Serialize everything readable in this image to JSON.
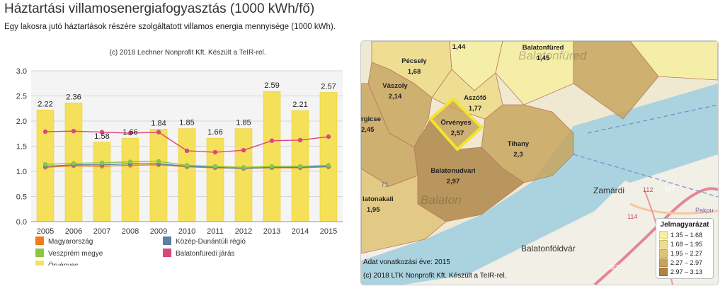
{
  "title": "Háztartási villamosenergiafogyasztás (1000 kWh/fő)",
  "subtitle": "Egy lakosra jutó háztartások részére szolgáltatott villamos energia mennyisége (1000 kWh).",
  "chart_credit": "(c) 2018 Lechner Nonprofit Kft. Készült a TeIR-rel.",
  "chart_data": {
    "type": "bar",
    "categories": [
      "2005",
      "2006",
      "2007",
      "2008",
      "2009",
      "2010",
      "2011",
      "2012",
      "2013",
      "2014",
      "2015"
    ],
    "ylim": [
      0,
      3.0
    ],
    "yticks": [
      "0.0",
      "0.5",
      "1.0",
      "1.5",
      "2.0",
      "2.5",
      "3.0"
    ],
    "bar_series": {
      "name": "Örvényes",
      "color": "#f5e05a",
      "values": [
        2.22,
        2.36,
        1.58,
        1.66,
        1.84,
        1.85,
        1.66,
        1.85,
        2.59,
        2.21,
        2.57
      ],
      "labels": [
        "2.22",
        "2.36",
        "1.58",
        "1.66",
        "1.84",
        "1.85",
        "1.66",
        "1.85",
        "2.59",
        "2.21",
        "2.57"
      ]
    },
    "line_series": [
      {
        "name": "Magyarország",
        "color": "#f07c1e",
        "values": [
          1.08,
          1.11,
          1.1,
          1.12,
          1.13,
          1.09,
          1.07,
          1.06,
          1.07,
          1.07,
          1.09
        ]
      },
      {
        "name": "Közép-Dunántúli régió",
        "color": "#5d7fa8",
        "values": [
          1.1,
          1.13,
          1.13,
          1.15,
          1.15,
          1.1,
          1.08,
          1.06,
          1.08,
          1.08,
          1.1
        ]
      },
      {
        "name": "Veszprém megye",
        "color": "#8dc63f",
        "values": [
          1.14,
          1.16,
          1.17,
          1.19,
          1.2,
          1.12,
          1.1,
          1.08,
          1.1,
          1.1,
          1.12
        ]
      },
      {
        "name": "Balatonfüredi járás",
        "color": "#d9487a",
        "values": [
          1.79,
          1.8,
          1.78,
          1.76,
          1.78,
          1.41,
          1.38,
          1.42,
          1.61,
          1.62,
          1.69
        ]
      }
    ],
    "legend_order": [
      "Magyarország",
      "Közép-Dunántúli régió",
      "Veszprém megye",
      "Balatonfüredi járás",
      "Örvényes"
    ],
    "grid": true
  },
  "map": {
    "regions": [
      {
        "name": "Pécsely",
        "value": "1,68"
      },
      {
        "name": "",
        "value": "1,44"
      },
      {
        "name": "Balatonfüred",
        "value": "1,45"
      },
      {
        "name": "Vászoly",
        "value": "2,14"
      },
      {
        "name": "Aszófő",
        "value": "1,77"
      },
      {
        "name": "rgicse",
        "value": "2,45"
      },
      {
        "name": "Örvényes",
        "value": "2,57"
      },
      {
        "name": "Tihany",
        "value": "2,3"
      },
      {
        "name": "Balatonudvari",
        "value": "2,97"
      },
      {
        "name": "latonakali",
        "value": "1,95"
      }
    ],
    "base_labels": [
      "Zamárdi",
      "Balatonföldvár",
      "Balatonfüred",
      "Balaton",
      "M7",
      "M7",
      "71",
      "112",
      "114",
      "Pakpu"
    ],
    "legend_title": "Jelmagyarázat",
    "legend_items": [
      {
        "label": "1.35 – 1.68",
        "color": "#f7ef9f"
      },
      {
        "label": "1.68 – 1.95",
        "color": "#eedc86"
      },
      {
        "label": "1.95 – 2.27",
        "color": "#dfc275"
      },
      {
        "label": "2.27 – 2.97",
        "color": "#c7a35a"
      },
      {
        "label": "2.97 – 3.13",
        "color": "#ad8443"
      }
    ],
    "year_text": "Adat vonatkozási éve: 2015",
    "credit_text": "(c) 2018 LTK Nonprofit Kft. Készült a TeIR-rel."
  }
}
